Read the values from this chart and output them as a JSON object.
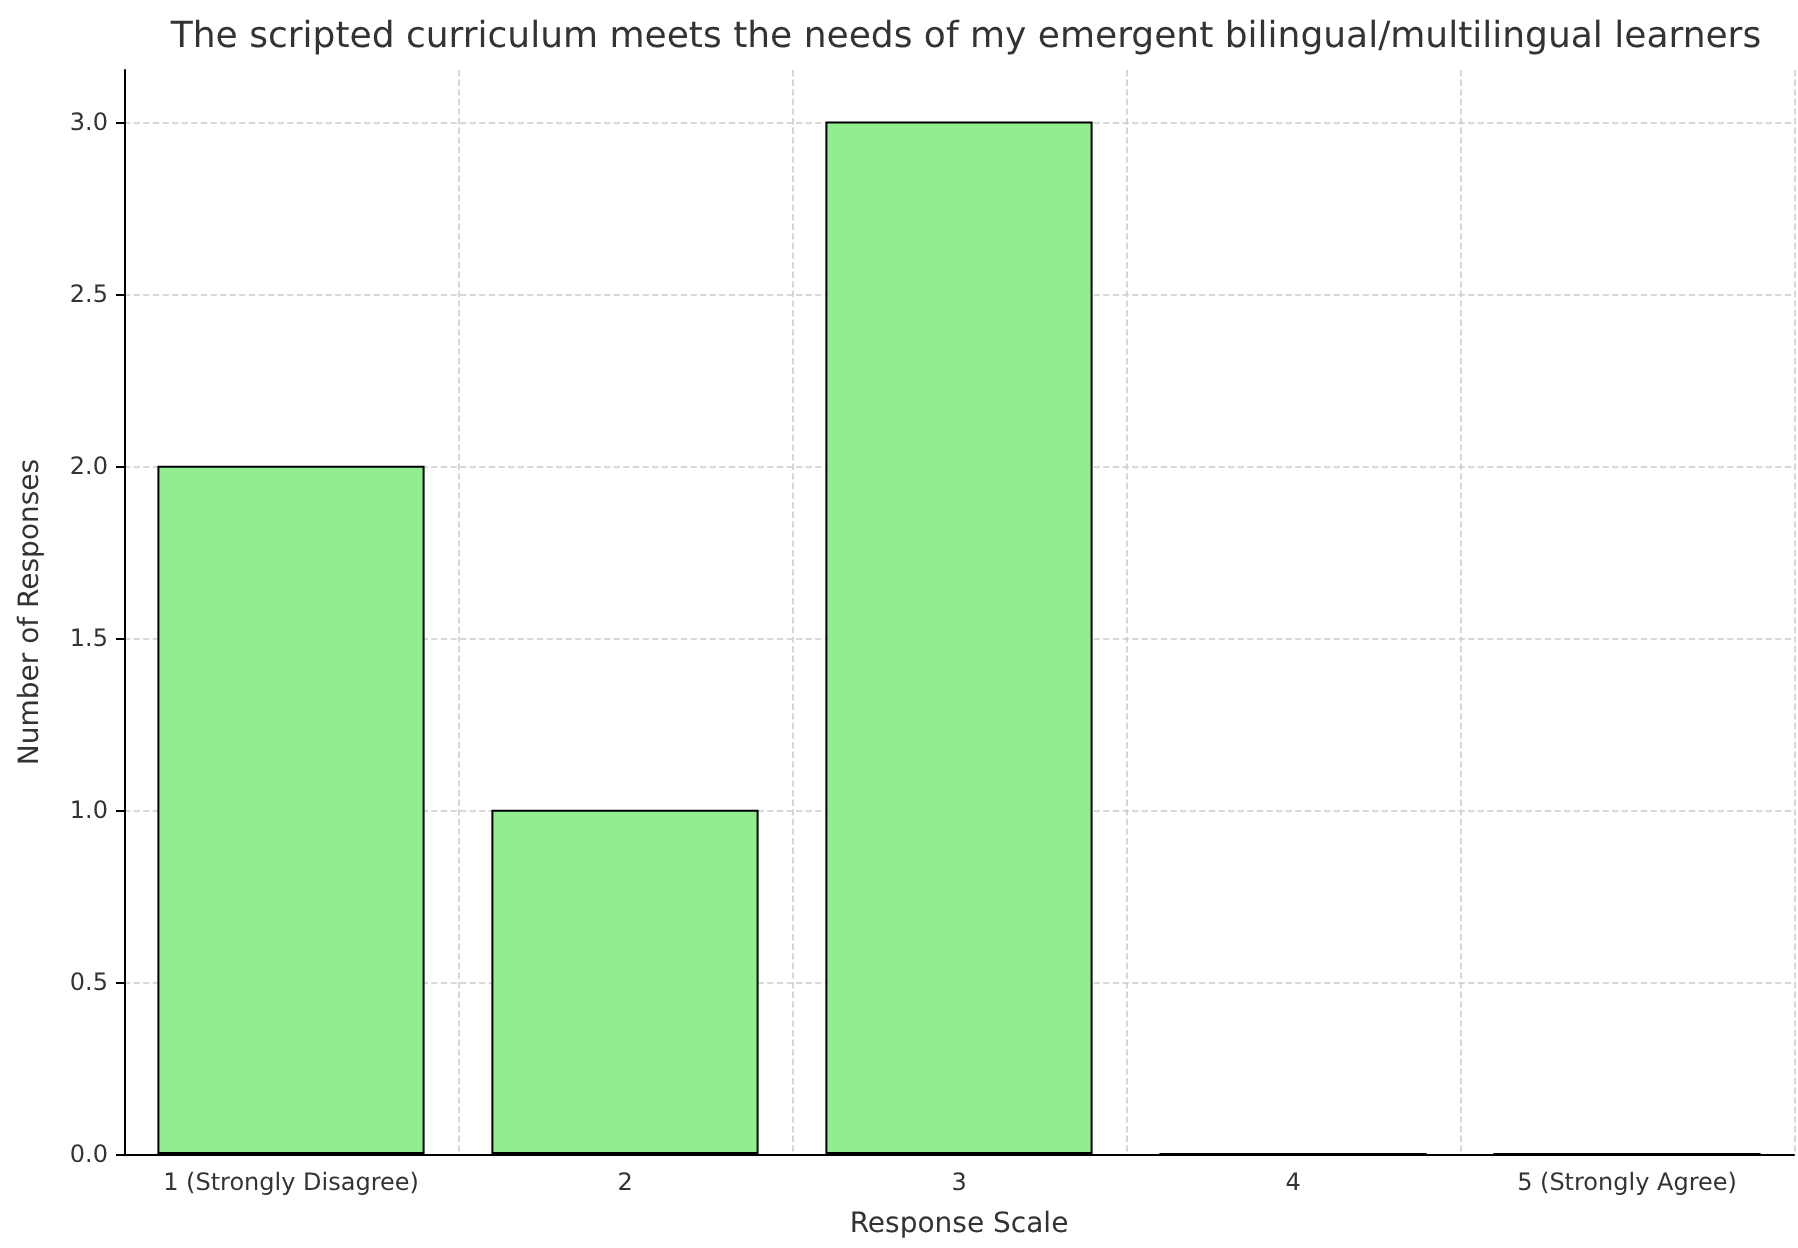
{
  "chart_data": {
    "type": "bar",
    "title": "The scripted curriculum meets the needs of my emergent bilingual/multilingual learners",
    "xlabel": "Response Scale",
    "ylabel": "Number of Responses",
    "categories": [
      "1 (Strongly Disagree)",
      "2",
      "3",
      "4",
      "5 (Strongly Agree)"
    ],
    "values": [
      2,
      1,
      3,
      0,
      0
    ],
    "color": "#90ee90",
    "ylim": [
      0,
      3.15
    ],
    "yticks": [
      {
        "value": 0,
        "label": "0.0"
      },
      {
        "value": 0.5,
        "label": "0.5"
      },
      {
        "value": 1,
        "label": "1.0"
      },
      {
        "value": 1.5,
        "label": "1.5"
      },
      {
        "value": 2,
        "label": "2.0"
      },
      {
        "value": 2.5,
        "label": "2.5"
      },
      {
        "value": 3,
        "label": "3.0"
      }
    ],
    "grid": true
  }
}
